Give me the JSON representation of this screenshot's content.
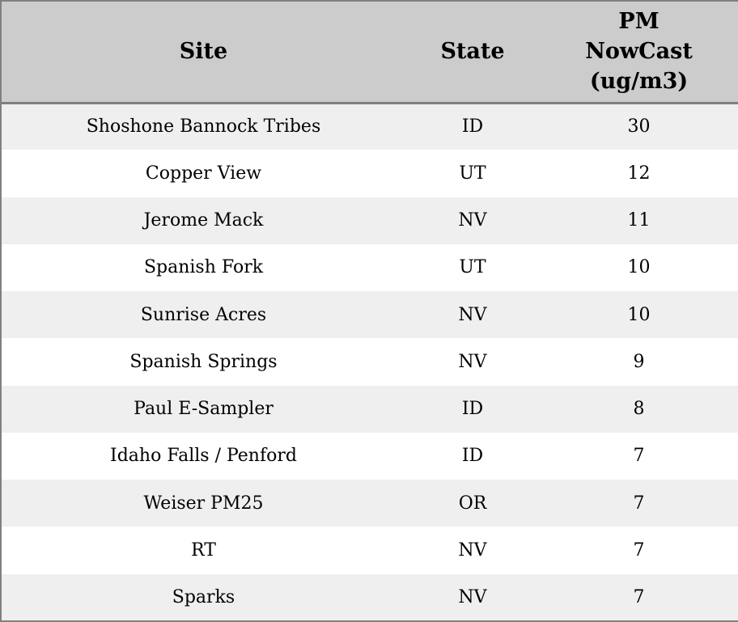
{
  "table": {
    "name": "PM NowCast readings by monitoring site",
    "columns": [
      {
        "key": "site",
        "label": "Site"
      },
      {
        "key": "state",
        "label": "State"
      },
      {
        "key": "pm",
        "label": "PM\nNowCast\n(ug/m3)"
      }
    ],
    "rows": [
      {
        "site": "Shoshone Bannock Tribes",
        "state": "ID",
        "pm": "30"
      },
      {
        "site": "Copper View",
        "state": "UT",
        "pm": "12"
      },
      {
        "site": "Jerome Mack",
        "state": "NV",
        "pm": "11"
      },
      {
        "site": "Spanish Fork",
        "state": "UT",
        "pm": "10"
      },
      {
        "site": "Sunrise Acres",
        "state": "NV",
        "pm": "10"
      },
      {
        "site": "Spanish Springs",
        "state": "NV",
        "pm": "9"
      },
      {
        "site": "Paul E-Sampler",
        "state": "ID",
        "pm": "8"
      },
      {
        "site": "Idaho Falls / Penford",
        "state": "ID",
        "pm": "7"
      },
      {
        "site": "Weiser PM25",
        "state": "OR",
        "pm": "7"
      },
      {
        "site": "RT",
        "state": "NV",
        "pm": "7"
      },
      {
        "site": "Sparks",
        "state": "NV",
        "pm": "7"
      }
    ]
  },
  "colors": {
    "border": "#808080",
    "header_bg": "#cccccc",
    "row_odd_bg": "#efefef",
    "row_even_bg": "#ffffff",
    "text": "#000000"
  }
}
